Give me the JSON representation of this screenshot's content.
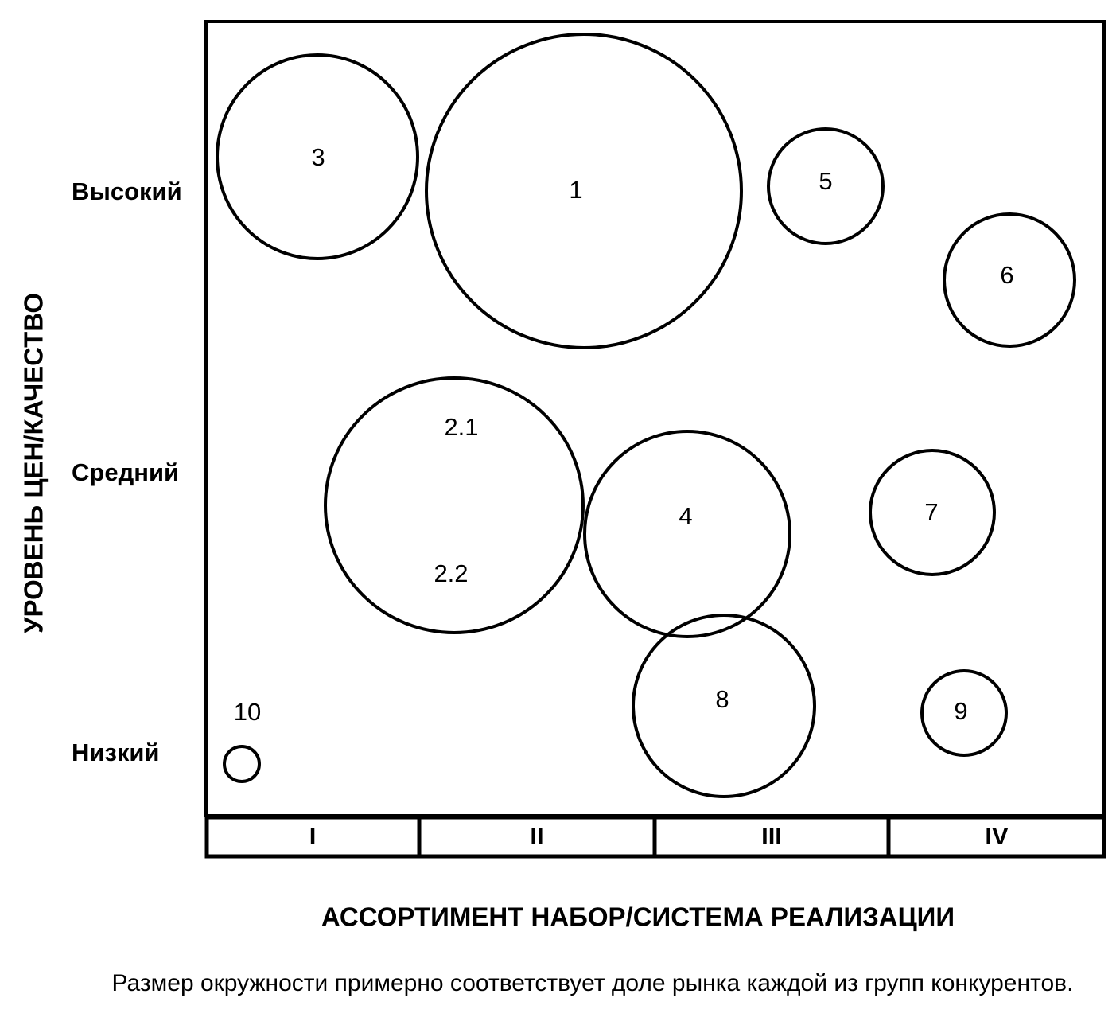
{
  "y_axis": {
    "title": "УРОВЕНЬ ЦЕН/КАЧЕСТВО",
    "levels": {
      "high": "Высокий",
      "medium": "Средний",
      "low": "Низкий"
    }
  },
  "x_axis": {
    "title": "АССОРТИМЕНТ НАБОР/СИСТЕМА РЕАЛИЗАЦИИ",
    "segments": [
      "I",
      "II",
      "III",
      "IV"
    ]
  },
  "bubbles": [
    {
      "id": "1",
      "labels": [
        "1"
      ]
    },
    {
      "id": "2",
      "labels": [
        "2.1",
        "2.2"
      ]
    },
    {
      "id": "3",
      "labels": [
        "3"
      ]
    },
    {
      "id": "4",
      "labels": [
        "4"
      ]
    },
    {
      "id": "5",
      "labels": [
        "5"
      ]
    },
    {
      "id": "6",
      "labels": [
        "6"
      ]
    },
    {
      "id": "7",
      "labels": [
        "7"
      ]
    },
    {
      "id": "8",
      "labels": [
        "8"
      ]
    },
    {
      "id": "9",
      "labels": [
        "9"
      ]
    },
    {
      "id": "10",
      "labels": [
        "10"
      ]
    }
  ],
  "caption": "Размер окружности примерно соответствует доле рынка каждой из групп конкурентов."
}
